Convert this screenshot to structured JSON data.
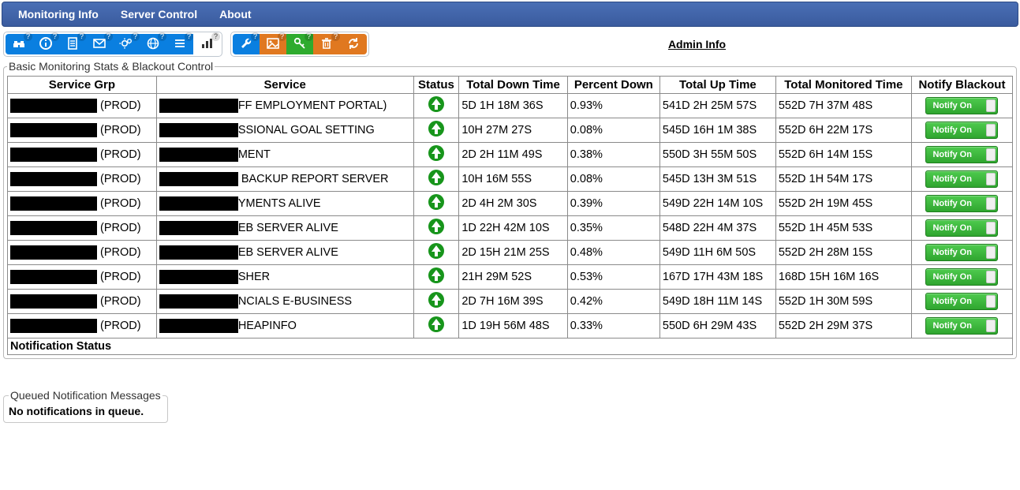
{
  "nav": {
    "items": [
      "Monitoring Info",
      "Server Control",
      "About"
    ]
  },
  "admin_link": "Admin Info",
  "toolbar_groups": [
    {
      "id": "group1",
      "buttons": [
        {
          "name": "binoculars-icon",
          "color": "tool-blue",
          "glyph": "binoculars",
          "help": true
        },
        {
          "name": "info-icon",
          "color": "tool-blue",
          "glyph": "info",
          "help": true
        },
        {
          "name": "document-icon",
          "color": "tool-blue",
          "glyph": "doc",
          "help": true
        },
        {
          "name": "mail-icon",
          "color": "tool-blue",
          "glyph": "mail",
          "help": true
        },
        {
          "name": "gears-icon",
          "color": "tool-blue",
          "glyph": "gears",
          "help": true
        },
        {
          "name": "globe-icon",
          "color": "tool-blue",
          "glyph": "globe",
          "help": true
        },
        {
          "name": "list-icon",
          "color": "tool-blue",
          "glyph": "list",
          "help": true
        },
        {
          "name": "chart-icon",
          "color": "tool-white",
          "glyph": "chart",
          "help": true
        }
      ]
    },
    {
      "id": "group2",
      "buttons": [
        {
          "name": "wrench-icon",
          "color": "tool-blue",
          "glyph": "wrench",
          "help": true
        },
        {
          "name": "image-icon",
          "color": "tool-orange",
          "glyph": "image",
          "help": true
        },
        {
          "name": "key-icon",
          "color": "tool-green",
          "glyph": "key",
          "help": true
        },
        {
          "name": "delete-icon",
          "color": "tool-orange",
          "glyph": "trash",
          "help": true
        },
        {
          "name": "refresh-icon",
          "color": "tool-orange",
          "glyph": "refresh",
          "help": false
        }
      ]
    }
  ],
  "panel": {
    "legend": "Basic Monitoring Stats & Blackout Control",
    "columns": [
      "Service Grp",
      "Service",
      "Status",
      "Total Down Time",
      "Percent Down",
      "Total Up Time",
      "Total Monitored Time",
      "Notify Blackout"
    ],
    "notify_label": "Notify On",
    "notification_status_label": "Notification Status",
    "rows": [
      {
        "grp_suffix": " (PROD)",
        "svc_suffix": "FF EMPLOYMENT PORTAL)",
        "status": "up",
        "down": "5D 1H 18M 36S",
        "pct": "0.93%",
        "up": "541D 2H 25M 57S",
        "mon": "552D 7H 37M 48S"
      },
      {
        "grp_suffix": " (PROD)",
        "svc_suffix": "SSIONAL GOAL SETTING",
        "status": "up",
        "down": "10H 27M 27S",
        "pct": "0.08%",
        "up": "545D 16H 1M 38S",
        "mon": "552D 6H 22M 17S"
      },
      {
        "grp_suffix": " (PROD)",
        "svc_suffix": "MENT",
        "status": "up",
        "down": "2D 2H 11M 49S",
        "pct": "0.38%",
        "up": "550D 3H 55M 50S",
        "mon": "552D 6H 14M 15S"
      },
      {
        "grp_suffix": " (PROD)",
        "svc_suffix": " BACKUP REPORT SERVER",
        "status": "up",
        "down": "10H 16M 55S",
        "pct": "0.08%",
        "up": "545D 13H 3M 51S",
        "mon": "552D 1H 54M 17S"
      },
      {
        "grp_suffix": " (PROD)",
        "svc_suffix": "YMENTS ALIVE",
        "status": "up",
        "down": "2D 4H 2M 30S",
        "pct": "0.39%",
        "up": "549D 22H 14M 10S",
        "mon": "552D 2H 19M 45S"
      },
      {
        "grp_suffix": " (PROD)",
        "svc_suffix": "EB SERVER ALIVE",
        "status": "up",
        "down": "1D 22H 42M 10S",
        "pct": "0.35%",
        "up": "548D 22H 4M 37S",
        "mon": "552D 1H 45M 53S"
      },
      {
        "grp_suffix": " (PROD)",
        "svc_suffix": "EB SERVER ALIVE",
        "status": "up",
        "down": "2D 15H 21M 25S",
        "pct": "0.48%",
        "up": "549D 11H 6M 50S",
        "mon": "552D 2H 28M 15S"
      },
      {
        "grp_suffix": " (PROD)",
        "svc_suffix": "SHER",
        "status": "up",
        "down": "21H 29M 52S",
        "pct": "0.53%",
        "up": "167D 17H 43M 18S",
        "mon": "168D 15H 16M 16S"
      },
      {
        "grp_suffix": " (PROD)",
        "svc_suffix": "NCIALS E-BUSINESS",
        "status": "up",
        "down": "2D 7H 16M 39S",
        "pct": "0.42%",
        "up": "549D 18H 11M 14S",
        "mon": "552D 1H 30M 59S"
      },
      {
        "grp_suffix": " (PROD)",
        "svc_suffix": "HEAPINFO",
        "status": "up",
        "down": "1D 19H 56M 48S",
        "pct": "0.33%",
        "up": "550D 6H 29M 43S",
        "mon": "552D 2H 29M 37S"
      }
    ]
  },
  "queue": {
    "legend": "Queued Notification Messages",
    "message": "No notifications in queue."
  },
  "colors": {
    "navbar": "#3f62a8",
    "tool_blue": "#0a7fe0",
    "tool_orange": "#e07820",
    "tool_green": "#2eab2e",
    "status_up": "#17951b",
    "notify_btn": "#39b539"
  }
}
